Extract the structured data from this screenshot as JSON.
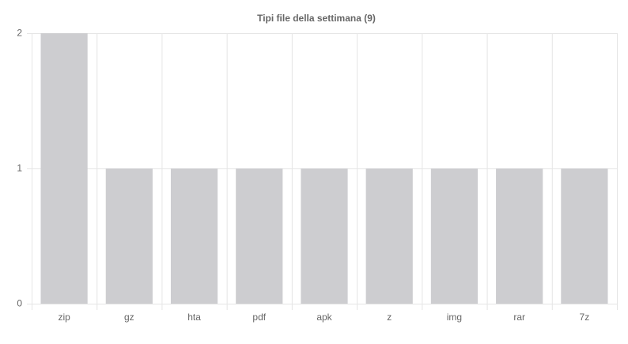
{
  "chart_data": {
    "type": "bar",
    "title": "Tipi file della settimana (9)",
    "categories": [
      "zip",
      "gz",
      "hta",
      "pdf",
      "apk",
      "z",
      "img",
      "rar",
      "7z"
    ],
    "values": [
      2,
      1,
      1,
      1,
      1,
      1,
      1,
      1,
      1
    ],
    "color": "#cdcdd0",
    "ylim": [
      0,
      2
    ],
    "yticks": [
      0,
      1,
      2
    ],
    "grid": true
  }
}
